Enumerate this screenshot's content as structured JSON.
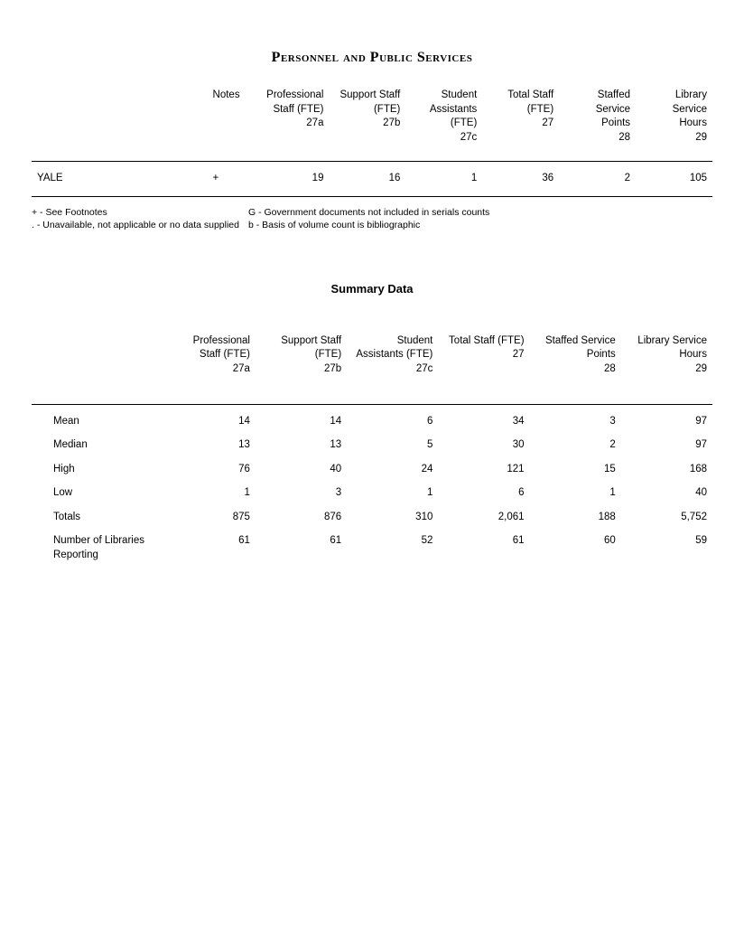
{
  "title": "Personnel and Public Services",
  "table1": {
    "headers": {
      "notes": "Notes",
      "c1": "Professional\nStaff (FTE)\n27a",
      "c2": "Support Staff\n(FTE)\n27b",
      "c3": "Student\nAssistants\n(FTE)\n27c",
      "c4": "Total Staff\n(FTE)\n27",
      "c5": "Staffed\nService\nPoints\n28",
      "c6": "Library\nService\nHours\n29"
    },
    "row": {
      "label": "YALE",
      "notes": "+",
      "c1": "19",
      "c2": "16",
      "c3": "1",
      "c4": "36",
      "c5": "2",
      "c6": "105"
    }
  },
  "footnotes": {
    "a1": "+ - See Footnotes",
    "a2": ". - Unavailable, not applicable or no data supplied",
    "b1": "G - Government documents not included in serials counts",
    "b2": "b - Basis of volume count is bibliographic"
  },
  "summary_title": "Summary Data",
  "table2": {
    "headers": {
      "c1": "Professional\nStaff (FTE)\n27a",
      "c2": "Support Staff\n(FTE)\n27b",
      "c3": "Student\nAssistants (FTE)\n27c",
      "c4": "Total Staff (FTE)\n27",
      "c5": "Staffed Service\nPoints\n28",
      "c6": "Library Service\nHours\n29"
    },
    "rows": [
      {
        "label": "Mean",
        "c1": "14",
        "c2": "14",
        "c3": "6",
        "c4": "34",
        "c5": "3",
        "c6": "97"
      },
      {
        "label": "Median",
        "c1": "13",
        "c2": "13",
        "c3": "5",
        "c4": "30",
        "c5": "2",
        "c6": "97"
      },
      {
        "label": "High",
        "c1": "76",
        "c2": "40",
        "c3": "24",
        "c4": "121",
        "c5": "15",
        "c6": "168"
      },
      {
        "label": "Low",
        "c1": "1",
        "c2": "3",
        "c3": "1",
        "c4": "6",
        "c5": "1",
        "c6": "40"
      },
      {
        "label": "Totals",
        "c1": "875",
        "c2": "876",
        "c3": "310",
        "c4": "2,061",
        "c5": "188",
        "c6": "5,752"
      },
      {
        "label": "Number of Libraries Reporting",
        "c1": "61",
        "c2": "61",
        "c3": "52",
        "c4": "61",
        "c5": "60",
        "c6": "59"
      }
    ]
  }
}
